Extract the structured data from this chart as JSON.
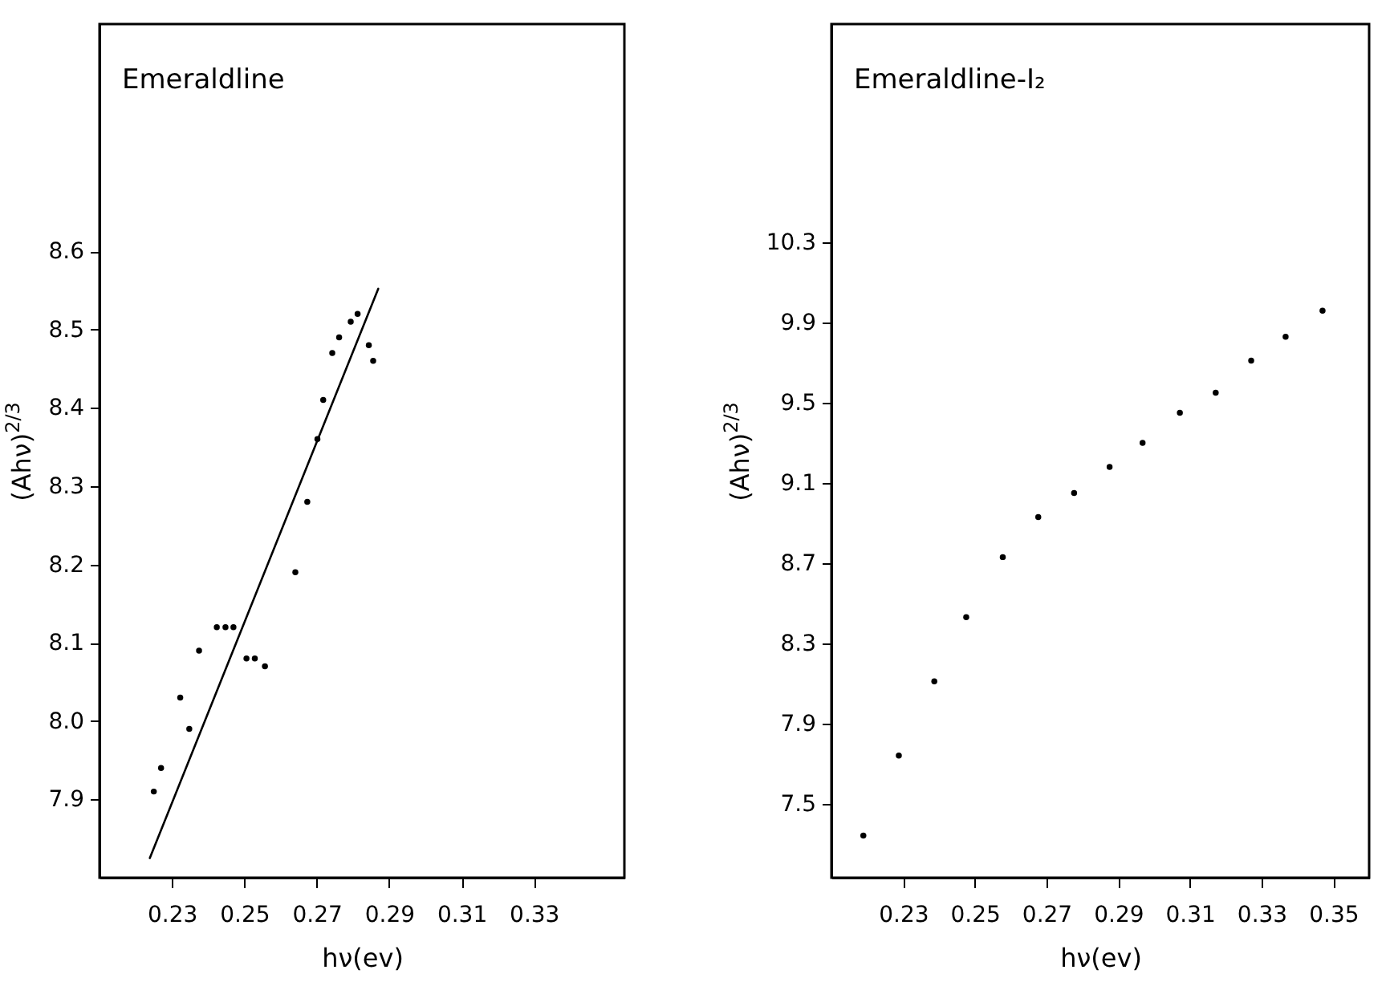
{
  "chart_data": [
    {
      "type": "scatter",
      "title": "Emeraldline",
      "xlabel": "hν(ev)",
      "ylabel": "(Ahν)$^{2/3}$",
      "xlim": [
        0.21,
        0.355
      ],
      "ylim": [
        7.8,
        8.89
      ],
      "xticks": [
        0.23,
        0.25,
        0.27,
        0.29,
        0.31,
        0.33
      ],
      "yticks": [
        7.9,
        {
          "value": 8.0,
          "label": "8.0"
        },
        8.1,
        8.2,
        8.3,
        8.4,
        8.5,
        8.6
      ],
      "grid": false,
      "series": [
        {
          "marker": "circle",
          "color": "#000000",
          "x": [
            0.225,
            0.227,
            0.2323,
            0.2348,
            0.2375,
            0.2424,
            0.2448,
            0.247,
            0.2506,
            0.2529,
            0.2557,
            0.2641,
            0.2674,
            0.2702,
            0.2718,
            0.2743,
            0.2762,
            0.2794,
            0.2813,
            0.2844,
            0.2856
          ],
          "values": [
            7.91,
            7.94,
            8.03,
            7.99,
            8.09,
            8.12,
            8.12,
            8.12,
            8.08,
            8.08,
            8.07,
            8.19,
            8.28,
            8.36,
            8.41,
            8.47,
            8.49,
            8.51,
            8.52,
            8.48,
            8.46
          ]
        },
        {
          "type": "line",
          "color": "#000000",
          "x": [
            0.2239,
            0.287
          ],
          "values": [
            7.825,
            8.552
          ]
        }
      ]
    },
    {
      "type": "scatter",
      "title": "Emeraldline-I₂",
      "xlabel": "hν(ev)",
      "ylabel": "(Ahν)$^{2/3}$",
      "xlim": [
        0.21,
        0.36
      ],
      "ylim": [
        7.13,
        11.39
      ],
      "xticks": [
        0.23,
        0.25,
        0.27,
        0.29,
        0.31,
        0.33,
        0.35
      ],
      "yticks": [
        7.5,
        7.9,
        8.3,
        8.7,
        9.1,
        9.5,
        9.9,
        10.3
      ],
      "marker": "circle",
      "grid": false,
      "series": [
        {
          "color": "#000000",
          "x": [
            0.2189,
            0.2288,
            0.2387,
            0.2476,
            0.2578,
            0.2677,
            0.2777,
            0.2876,
            0.2968,
            0.3072,
            0.3172,
            0.3271,
            0.3367,
            0.347
          ],
          "values": [
            7.34,
            7.74,
            8.11,
            8.43,
            8.73,
            8.93,
            9.05,
            9.18,
            9.3,
            9.45,
            9.55,
            9.71,
            9.83,
            9.96
          ]
        }
      ]
    }
  ]
}
